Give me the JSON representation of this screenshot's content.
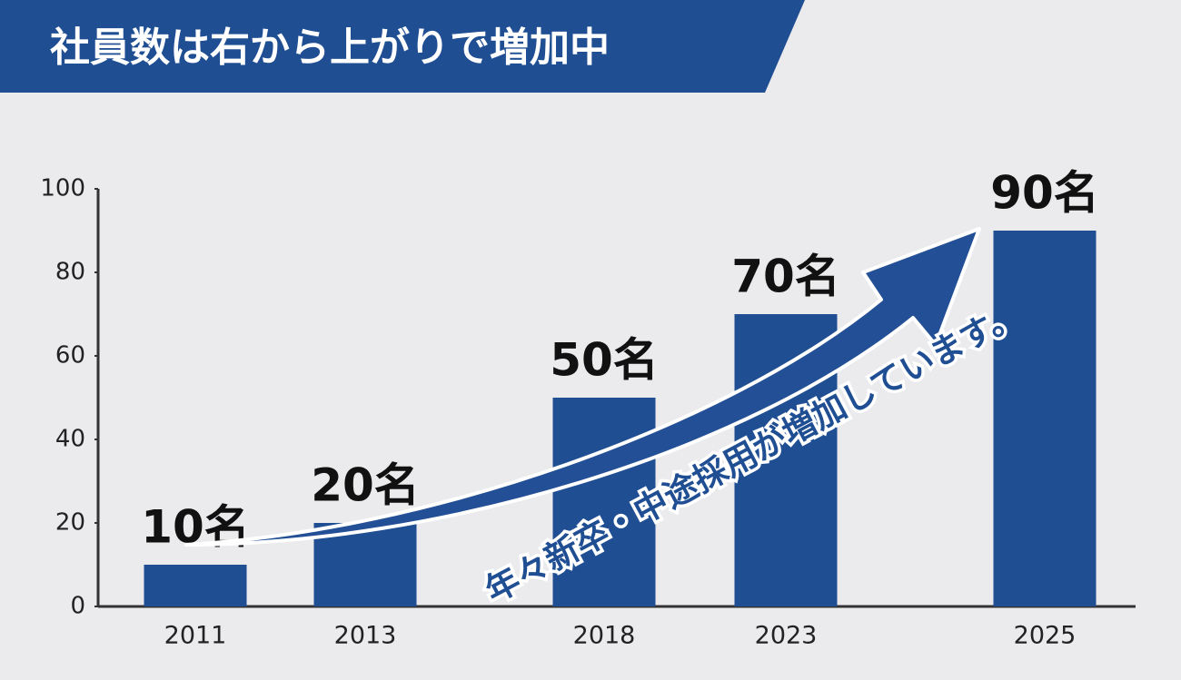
{
  "chart_data": {
    "type": "bar",
    "title": "社員数は右から上がりで増加中",
    "annotation": "年々新卒・中途採用が増加しています。",
    "categories": [
      "2011",
      "2013",
      "2018",
      "2023",
      "2025"
    ],
    "values": [
      10,
      20,
      50,
      70,
      90
    ],
    "value_labels": [
      "10名",
      "20名",
      "50名",
      "70名",
      "90名"
    ],
    "color": "#1f4e93",
    "ylim": [
      0,
      100
    ],
    "yticks": [
      0,
      20,
      40,
      60,
      80,
      100
    ],
    "grid": false
  }
}
